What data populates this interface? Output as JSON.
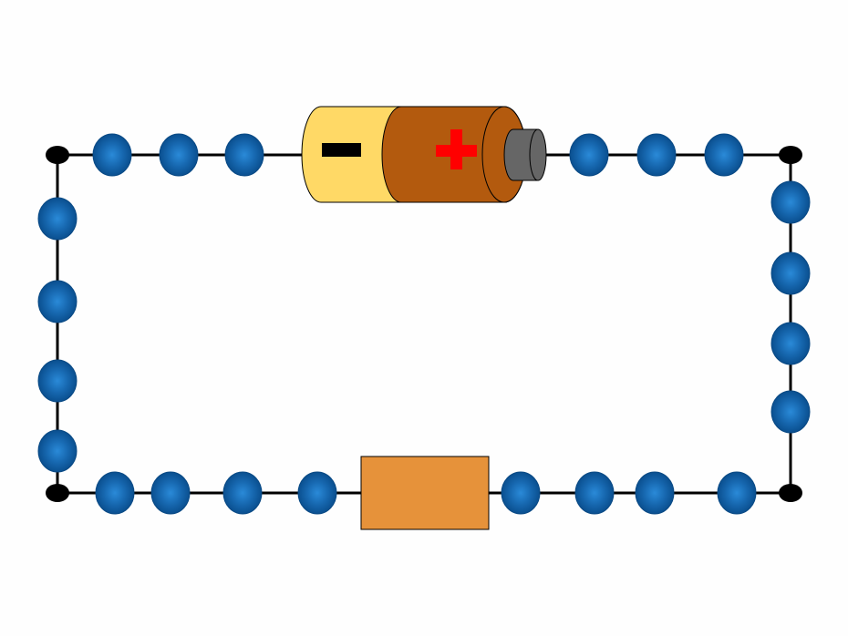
{
  "diagram": {
    "background": "#fefefe",
    "wire_color": "#000000",
    "electron_color": "#0a5aa0",
    "electron_glow": "#1b7fd0",
    "battery": {
      "negative_body_color": "#ffd966",
      "positive_body_color": "#b35a0e",
      "terminal_color": "#666666",
      "negative_sign_color": "#000000",
      "positive_sign_color": "#ff0000"
    },
    "resistor": {
      "color": "#e6923a"
    },
    "electron_count": 23
  }
}
